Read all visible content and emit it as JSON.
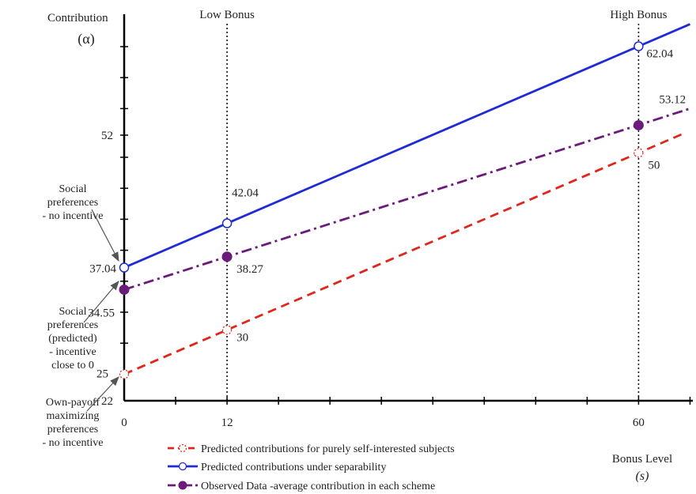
{
  "chart_data": {
    "type": "line",
    "ylabel": "Contribution",
    "ylabel_symbol": "(α)",
    "xlabel": "Bonus Level",
    "xlabel_symbol": "(s)",
    "x_ticks": [
      0,
      12,
      60
    ],
    "y_ticks": [
      22,
      52
    ],
    "xlim": [
      0,
      66
    ],
    "ylim": [
      22,
      64.5
    ],
    "grid": false,
    "legend_position": "bottom-center",
    "reference_lines": [
      {
        "x": 12,
        "label": "Low Bonus"
      },
      {
        "x": 60,
        "label": "High Bonus"
      }
    ],
    "series": [
      {
        "name": "Predicted contributions for purely self-interested subjects",
        "color": "#e0261c",
        "style": "dashed",
        "marker": "open-dashed-circle",
        "points": [
          {
            "x": 0,
            "y": 25
          },
          {
            "x": 12,
            "y": 30
          },
          {
            "x": 60,
            "y": 50
          }
        ],
        "line_end": {
          "x": 65,
          "y": 52.08
        },
        "labels": [
          "25",
          "30",
          "50"
        ]
      },
      {
        "name": "Predicted contributions under separability",
        "color": "#1f2bd6",
        "style": "solid",
        "marker": "open-circle",
        "points": [
          {
            "x": 0,
            "y": 37.04
          },
          {
            "x": 12,
            "y": 42.04
          },
          {
            "x": 60,
            "y": 62.04
          }
        ],
        "line_end": {
          "x": 66,
          "y": 64.54
        },
        "labels": [
          "37.04",
          "42.04",
          "62.04"
        ]
      },
      {
        "name": "Observed Data -average contribution in each scheme",
        "color": "#6b1b7a",
        "style": "dashdot",
        "marker": "filled-circle",
        "points": [
          {
            "x": 0,
            "y": 34.55
          },
          {
            "x": 12,
            "y": 38.27
          },
          {
            "x": 60,
            "y": 53.12
          }
        ],
        "line_end": {
          "x": 66,
          "y": 55.0
        },
        "labels": [
          "34.55",
          "38.27",
          "53.12"
        ]
      }
    ],
    "annotations": [
      {
        "lines": [
          "Social",
          "preferences",
          "- no incentive"
        ],
        "target": {
          "x": 0,
          "y": 37.04
        }
      },
      {
        "lines": [
          "Social",
          "preferences",
          "(predicted)",
          "-  incentive",
          "close to 0"
        ],
        "target": {
          "x": 0,
          "y": 34.55
        }
      },
      {
        "lines": [
          "Own-payoff",
          "maximizing",
          "preferences",
          "- no incentive"
        ],
        "target": {
          "x": 0,
          "y": 25
        }
      }
    ]
  }
}
